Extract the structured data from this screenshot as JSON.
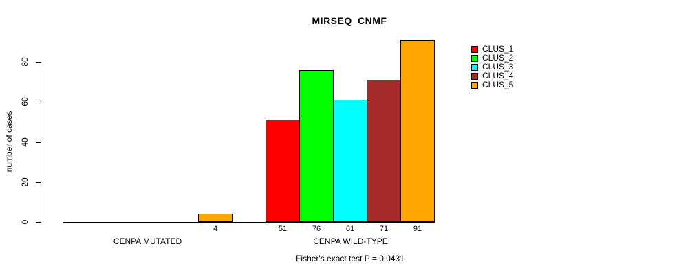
{
  "chart_data": {
    "type": "bar",
    "title": "MIRSEQ_CNMF",
    "ylabel": "number of cases",
    "xlabel": "",
    "ylim": [
      0,
      80
    ],
    "yticks": [
      "0",
      "20",
      "40",
      "60",
      "80"
    ],
    "grid": false,
    "legend_position": "top-right",
    "categories": [
      "CENPA MUTATED",
      "CENPA WILD-TYPE"
    ],
    "series": [
      {
        "name": "CLUS_1",
        "color": "#FF0000",
        "values": [
          0,
          51
        ]
      },
      {
        "name": "CLUS_2",
        "color": "#00FF00",
        "values": [
          0,
          76
        ]
      },
      {
        "name": "CLUS_3",
        "color": "#00FFFF",
        "values": [
          0,
          61
        ]
      },
      {
        "name": "CLUS_4",
        "color": "#A52A2A",
        "values": [
          0,
          71
        ]
      },
      {
        "name": "CLUS_5",
        "color": "#FFA500",
        "values": [
          4,
          91
        ]
      }
    ],
    "bar_value_labels": [
      [
        null,
        null,
        null,
        null,
        "4"
      ],
      [
        "51",
        "76",
        "61",
        "71",
        "91"
      ]
    ],
    "annotation": "Fisher's exact test P = 0.0431",
    "axis_color": "#000000",
    "bar_border_color": "#000000"
  }
}
